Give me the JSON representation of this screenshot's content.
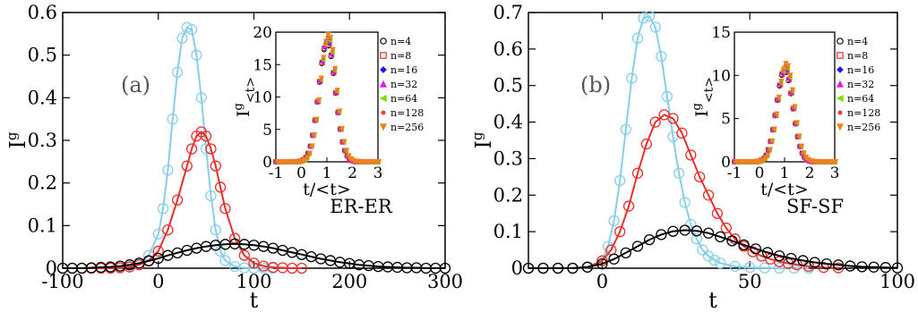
{
  "chart_data": [
    {
      "type": "line",
      "panel_label": "(a)",
      "annotation": "ER-ER",
      "xlabel": "t",
      "ylabel": "I",
      "ylabel_sup": "g",
      "xlim": [
        -100,
        300
      ],
      "ylim": [
        0,
        0.6
      ],
      "xticks": [
        "-100",
        "0",
        "100",
        "200",
        "300"
      ],
      "yticks": [
        "0",
        "0.1",
        "0.2",
        "0.3",
        "0.4",
        "0.5",
        "0.6"
      ],
      "series": [
        {
          "color": "#87CEEB",
          "x": [
            -100,
            -90,
            -80,
            -70,
            -60,
            -50,
            -40,
            -30,
            -20,
            -10,
            0,
            5,
            10,
            15,
            20,
            25,
            30,
            35,
            40,
            45,
            50,
            55,
            60,
            65,
            70,
            80,
            90,
            100,
            110,
            120
          ],
          "values": [
            0,
            0,
            0,
            0,
            0,
            0,
            0.001,
            0.003,
            0.01,
            0.03,
            0.08,
            0.14,
            0.23,
            0.35,
            0.46,
            0.54,
            0.565,
            0.56,
            0.5,
            0.4,
            0.28,
            0.17,
            0.09,
            0.04,
            0.018,
            0.004,
            0.001,
            0,
            0,
            0
          ]
        },
        {
          "color": "#E8302A",
          "x": [
            -100,
            -90,
            -80,
            -70,
            -60,
            -50,
            -40,
            -30,
            -20,
            -10,
            0,
            10,
            20,
            30,
            35,
            40,
            45,
            50,
            55,
            60,
            65,
            70,
            80,
            90,
            100,
            110,
            120,
            130,
            140,
            150
          ],
          "values": [
            0,
            0,
            0,
            0,
            0,
            0,
            0.001,
            0.003,
            0.008,
            0.018,
            0.04,
            0.09,
            0.16,
            0.24,
            0.28,
            0.31,
            0.32,
            0.31,
            0.28,
            0.24,
            0.19,
            0.14,
            0.07,
            0.03,
            0.012,
            0.005,
            0.002,
            0.001,
            0,
            0
          ]
        },
        {
          "color": "#000000",
          "x": [
            -100,
            -90,
            -80,
            -70,
            -60,
            -50,
            -40,
            -30,
            -20,
            -10,
            0,
            10,
            20,
            30,
            40,
            50,
            60,
            70,
            80,
            90,
            100,
            110,
            120,
            130,
            140,
            150,
            160,
            170,
            180,
            190,
            200,
            210,
            220,
            230,
            240,
            250,
            260,
            270,
            280,
            290,
            300
          ],
          "values": [
            0,
            0,
            0,
            0.001,
            0.002,
            0.003,
            0.005,
            0.008,
            0.012,
            0.017,
            0.023,
            0.03,
            0.036,
            0.042,
            0.047,
            0.051,
            0.054,
            0.056,
            0.057,
            0.056,
            0.054,
            0.051,
            0.047,
            0.042,
            0.037,
            0.032,
            0.027,
            0.022,
            0.018,
            0.014,
            0.011,
            0.008,
            0.006,
            0.004,
            0.003,
            0.002,
            0.001,
            0.001,
            0,
            0,
            0
          ]
        }
      ],
      "inset": {
        "xlabel": "t/<t>",
        "ylabel": "I",
        "ylabel_sup": "g",
        "ylabel_sub": "<t>",
        "xlim": [
          -1,
          3
        ],
        "ylim": [
          0,
          20
        ],
        "xticks": [
          "-1",
          "0",
          "1",
          "2",
          "3"
        ],
        "yticks": [
          "0",
          "5",
          "10",
          "15",
          "20"
        ],
        "peak": 19
      }
    },
    {
      "type": "line",
      "panel_label": "(b)",
      "annotation": "SF-SF",
      "xlabel": "t",
      "ylabel": "I",
      "ylabel_sup": "g",
      "xlim": [
        -25,
        100
      ],
      "ylim": [
        0,
        0.7
      ],
      "xticks": [
        "0",
        "50",
        "100"
      ],
      "yticks": [
        "0",
        "0.1",
        "0.2",
        "0.3",
        "0.4",
        "0.5",
        "0.6",
        "0.7"
      ],
      "series": [
        {
          "color": "#87CEEB",
          "x": [
            -25,
            -20,
            -15,
            -10,
            -5,
            0,
            2,
            4,
            6,
            8,
            10,
            12,
            14,
            16,
            18,
            20,
            22,
            24,
            26,
            28,
            30,
            32,
            34,
            36,
            38,
            40,
            45,
            50,
            55,
            60,
            65,
            70
          ],
          "values": [
            0,
            0,
            0,
            0,
            0.002,
            0.02,
            0.06,
            0.13,
            0.24,
            0.38,
            0.52,
            0.63,
            0.685,
            0.69,
            0.66,
            0.58,
            0.47,
            0.36,
            0.26,
            0.18,
            0.12,
            0.08,
            0.05,
            0.033,
            0.022,
            0.014,
            0.005,
            0.002,
            0.001,
            0,
            0,
            0
          ]
        },
        {
          "color": "#E8302A",
          "x": [
            -25,
            -20,
            -15,
            -10,
            -5,
            0,
            3,
            6,
            9,
            12,
            15,
            18,
            21,
            24,
            27,
            30,
            33,
            36,
            39,
            42,
            45,
            48,
            51,
            54,
            57,
            60,
            63,
            66,
            70,
            75,
            80
          ],
          "values": [
            0,
            0,
            0,
            0,
            0.003,
            0.02,
            0.05,
            0.1,
            0.17,
            0.26,
            0.34,
            0.4,
            0.42,
            0.41,
            0.37,
            0.31,
            0.25,
            0.2,
            0.15,
            0.11,
            0.08,
            0.06,
            0.045,
            0.033,
            0.025,
            0.018,
            0.013,
            0.009,
            0.005,
            0.002,
            0.001
          ]
        },
        {
          "color": "#000000",
          "x": [
            -25,
            -20,
            -15,
            -10,
            -5,
            0,
            4,
            8,
            12,
            16,
            20,
            24,
            28,
            32,
            36,
            40,
            44,
            48,
            52,
            56,
            60,
            64,
            68,
            72,
            76,
            80,
            84,
            88,
            92,
            96,
            100
          ],
          "values": [
            0,
            0,
            0,
            0,
            0.003,
            0.012,
            0.025,
            0.042,
            0.06,
            0.078,
            0.092,
            0.101,
            0.104,
            0.102,
            0.096,
            0.086,
            0.075,
            0.064,
            0.053,
            0.043,
            0.034,
            0.027,
            0.021,
            0.016,
            0.012,
            0.009,
            0.006,
            0.004,
            0.003,
            0.002,
            0.001
          ]
        }
      ],
      "inset": {
        "xlabel": "t/<t>",
        "ylabel": "I",
        "ylabel_sup": "g",
        "ylabel_sub": "<t>",
        "xlim": [
          -1,
          3
        ],
        "ylim": [
          0,
          15
        ],
        "xticks": [
          "-1",
          "0",
          "1",
          "2",
          "3"
        ],
        "yticks": [
          "0",
          "5",
          "10",
          "15"
        ],
        "peak": 11
      }
    }
  ],
  "inset_legend": [
    {
      "label": "n=4",
      "color": "#000000",
      "marker": "circle"
    },
    {
      "label": "n=8",
      "color": "#E8302A",
      "marker": "square"
    },
    {
      "label": "n=16",
      "color": "#1A1AE6",
      "marker": "diamond"
    },
    {
      "label": "n=32",
      "color": "#E020E0",
      "marker": "triangle-up"
    },
    {
      "label": "n=64",
      "color": "#7FE000",
      "marker": "triangle-left"
    },
    {
      "label": "n=128",
      "color": "#F03C3C",
      "marker": "star"
    },
    {
      "label": "n=256",
      "color": "#F08020",
      "marker": "triangle-down"
    }
  ]
}
